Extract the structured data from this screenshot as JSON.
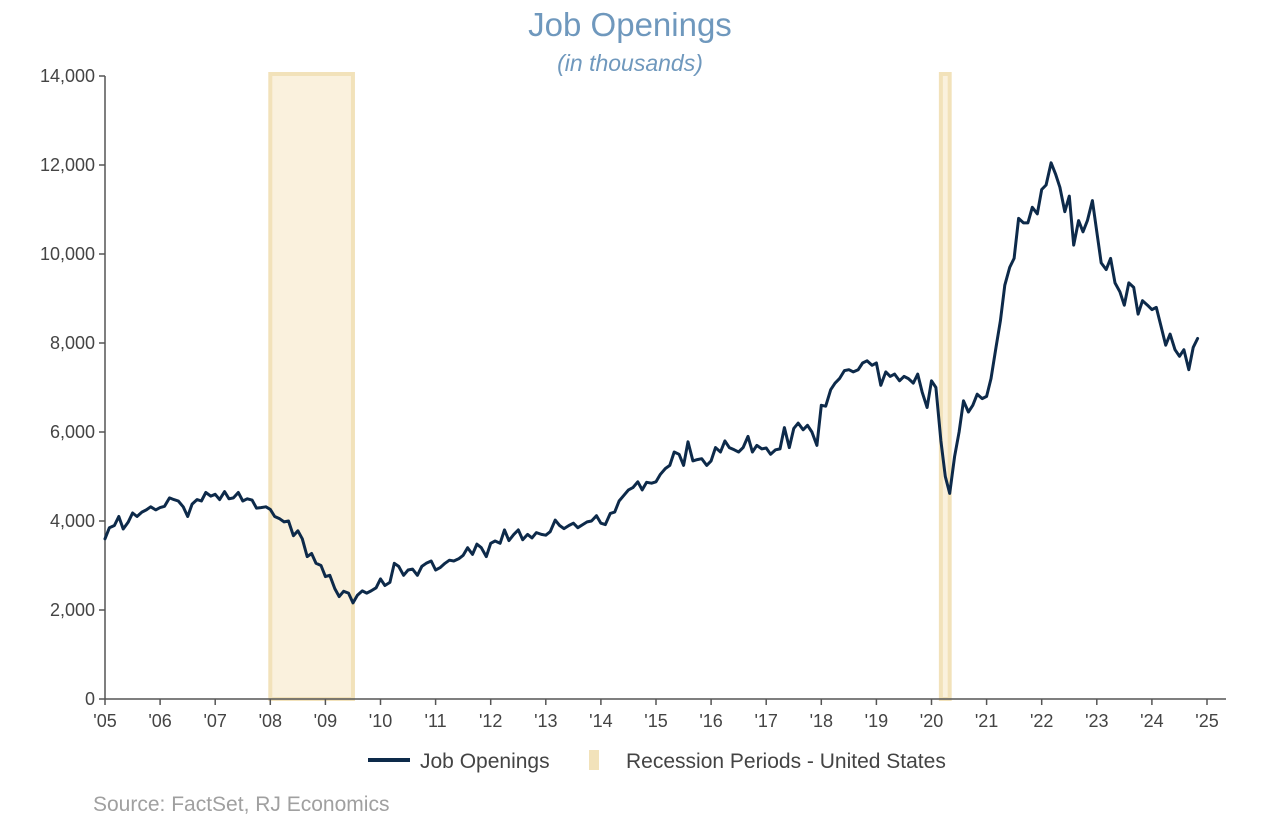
{
  "chart_data": {
    "type": "line",
    "title": "Job Openings",
    "subtitle": "(in thousands)",
    "ylim": [
      0,
      14000
    ],
    "yticks": [
      0,
      2000,
      4000,
      6000,
      8000,
      10000,
      12000,
      14000
    ],
    "ytick_labels": [
      "0",
      "2,000",
      "4,000",
      "6,000",
      "8,000",
      "10,000",
      "12,000",
      "14,000"
    ],
    "xlim": [
      2005,
      2025.5
    ],
    "xticks": [
      2005,
      2006,
      2007,
      2008,
      2009,
      2010,
      2011,
      2012,
      2013,
      2014,
      2015,
      2016,
      2017,
      2018,
      2019,
      2020,
      2021,
      2022,
      2023,
      2024,
      2025
    ],
    "xtick_labels": [
      "'05",
      "'06",
      "'07",
      "'08",
      "'09",
      "'10",
      "'11",
      "'12",
      "'13",
      "'14",
      "'15",
      "'16",
      "'17",
      "'18",
      "'19",
      "'20",
      "'21",
      "'22",
      "'23",
      "'24",
      "'25"
    ],
    "grid": false,
    "legend_position": "bottom-center",
    "colors": {
      "line": "#0d2a4a",
      "recession": "#f2e2ba",
      "recession_fill": "#faf1dd",
      "axis": "#555555"
    },
    "recessions": [
      {
        "start": 2008.0,
        "end": 2009.5
      },
      {
        "start": 2020.17,
        "end": 2020.33
      }
    ],
    "series": [
      {
        "name": "Job Openings",
        "points": [
          [
            2005.0,
            3600
          ],
          [
            2005.08,
            3850
          ],
          [
            2005.17,
            3900
          ],
          [
            2005.25,
            4100
          ],
          [
            2005.33,
            3820
          ],
          [
            2005.42,
            3970
          ],
          [
            2005.5,
            4180
          ],
          [
            2005.58,
            4100
          ],
          [
            2005.67,
            4200
          ],
          [
            2005.75,
            4250
          ],
          [
            2005.83,
            4320
          ],
          [
            2005.92,
            4250
          ],
          [
            2006.0,
            4300
          ],
          [
            2006.08,
            4330
          ],
          [
            2006.17,
            4520
          ],
          [
            2006.25,
            4480
          ],
          [
            2006.33,
            4450
          ],
          [
            2006.42,
            4320
          ],
          [
            2006.5,
            4100
          ],
          [
            2006.58,
            4380
          ],
          [
            2006.67,
            4480
          ],
          [
            2006.75,
            4450
          ],
          [
            2006.83,
            4640
          ],
          [
            2006.92,
            4560
          ],
          [
            2007.0,
            4600
          ],
          [
            2007.08,
            4480
          ],
          [
            2007.17,
            4660
          ],
          [
            2007.25,
            4500
          ],
          [
            2007.33,
            4520
          ],
          [
            2007.42,
            4640
          ],
          [
            2007.5,
            4450
          ],
          [
            2007.58,
            4500
          ],
          [
            2007.67,
            4470
          ],
          [
            2007.75,
            4290
          ],
          [
            2007.83,
            4300
          ],
          [
            2007.92,
            4320
          ],
          [
            2008.0,
            4260
          ],
          [
            2008.08,
            4100
          ],
          [
            2008.17,
            4050
          ],
          [
            2008.25,
            3980
          ],
          [
            2008.33,
            4000
          ],
          [
            2008.42,
            3670
          ],
          [
            2008.5,
            3780
          ],
          [
            2008.58,
            3600
          ],
          [
            2008.67,
            3200
          ],
          [
            2008.75,
            3270
          ],
          [
            2008.83,
            3050
          ],
          [
            2008.92,
            3000
          ],
          [
            2009.0,
            2750
          ],
          [
            2009.08,
            2780
          ],
          [
            2009.17,
            2480
          ],
          [
            2009.25,
            2300
          ],
          [
            2009.33,
            2420
          ],
          [
            2009.42,
            2380
          ],
          [
            2009.5,
            2160
          ],
          [
            2009.58,
            2330
          ],
          [
            2009.67,
            2430
          ],
          [
            2009.75,
            2380
          ],
          [
            2009.83,
            2430
          ],
          [
            2009.92,
            2500
          ],
          [
            2010.0,
            2700
          ],
          [
            2010.08,
            2550
          ],
          [
            2010.17,
            2620
          ],
          [
            2010.25,
            3050
          ],
          [
            2010.33,
            2980
          ],
          [
            2010.42,
            2780
          ],
          [
            2010.5,
            2900
          ],
          [
            2010.58,
            2920
          ],
          [
            2010.67,
            2780
          ],
          [
            2010.75,
            2980
          ],
          [
            2010.83,
            3050
          ],
          [
            2010.92,
            3100
          ],
          [
            2011.0,
            2900
          ],
          [
            2011.08,
            2950
          ],
          [
            2011.17,
            3050
          ],
          [
            2011.25,
            3120
          ],
          [
            2011.33,
            3100
          ],
          [
            2011.42,
            3150
          ],
          [
            2011.5,
            3230
          ],
          [
            2011.58,
            3400
          ],
          [
            2011.67,
            3250
          ],
          [
            2011.75,
            3480
          ],
          [
            2011.83,
            3400
          ],
          [
            2011.92,
            3200
          ],
          [
            2012.0,
            3500
          ],
          [
            2012.08,
            3550
          ],
          [
            2012.17,
            3500
          ],
          [
            2012.25,
            3800
          ],
          [
            2012.33,
            3560
          ],
          [
            2012.42,
            3700
          ],
          [
            2012.5,
            3800
          ],
          [
            2012.58,
            3580
          ],
          [
            2012.67,
            3700
          ],
          [
            2012.75,
            3620
          ],
          [
            2012.83,
            3740
          ],
          [
            2012.92,
            3700
          ],
          [
            2013.0,
            3680
          ],
          [
            2013.08,
            3760
          ],
          [
            2013.17,
            4020
          ],
          [
            2013.25,
            3900
          ],
          [
            2013.33,
            3830
          ],
          [
            2013.42,
            3900
          ],
          [
            2013.5,
            3950
          ],
          [
            2013.58,
            3850
          ],
          [
            2013.67,
            3920
          ],
          [
            2013.75,
            3980
          ],
          [
            2013.83,
            4000
          ],
          [
            2013.92,
            4120
          ],
          [
            2014.0,
            3950
          ],
          [
            2014.08,
            3920
          ],
          [
            2014.17,
            4170
          ],
          [
            2014.25,
            4200
          ],
          [
            2014.33,
            4450
          ],
          [
            2014.42,
            4580
          ],
          [
            2014.5,
            4700
          ],
          [
            2014.58,
            4750
          ],
          [
            2014.67,
            4880
          ],
          [
            2014.75,
            4700
          ],
          [
            2014.83,
            4870
          ],
          [
            2014.92,
            4850
          ],
          [
            2015.0,
            4880
          ],
          [
            2015.08,
            5050
          ],
          [
            2015.17,
            5180
          ],
          [
            2015.25,
            5250
          ],
          [
            2015.33,
            5550
          ],
          [
            2015.42,
            5500
          ],
          [
            2015.5,
            5250
          ],
          [
            2015.58,
            5780
          ],
          [
            2015.67,
            5350
          ],
          [
            2015.75,
            5380
          ],
          [
            2015.83,
            5400
          ],
          [
            2015.92,
            5250
          ],
          [
            2016.0,
            5350
          ],
          [
            2016.08,
            5650
          ],
          [
            2016.17,
            5550
          ],
          [
            2016.25,
            5800
          ],
          [
            2016.33,
            5650
          ],
          [
            2016.42,
            5600
          ],
          [
            2016.5,
            5550
          ],
          [
            2016.58,
            5650
          ],
          [
            2016.67,
            5900
          ],
          [
            2016.75,
            5550
          ],
          [
            2016.83,
            5700
          ],
          [
            2016.92,
            5620
          ],
          [
            2017.0,
            5640
          ],
          [
            2017.08,
            5500
          ],
          [
            2017.17,
            5600
          ],
          [
            2017.25,
            5620
          ],
          [
            2017.33,
            6100
          ],
          [
            2017.42,
            5650
          ],
          [
            2017.5,
            6080
          ],
          [
            2017.58,
            6200
          ],
          [
            2017.67,
            6050
          ],
          [
            2017.75,
            6150
          ],
          [
            2017.83,
            6000
          ],
          [
            2017.92,
            5700
          ],
          [
            2018.0,
            6600
          ],
          [
            2018.08,
            6580
          ],
          [
            2018.17,
            6950
          ],
          [
            2018.25,
            7100
          ],
          [
            2018.33,
            7200
          ],
          [
            2018.42,
            7380
          ],
          [
            2018.5,
            7400
          ],
          [
            2018.58,
            7350
          ],
          [
            2018.67,
            7400
          ],
          [
            2018.75,
            7550
          ],
          [
            2018.83,
            7600
          ],
          [
            2018.92,
            7500
          ],
          [
            2019.0,
            7550
          ],
          [
            2019.08,
            7050
          ],
          [
            2019.17,
            7350
          ],
          [
            2019.25,
            7250
          ],
          [
            2019.33,
            7300
          ],
          [
            2019.42,
            7150
          ],
          [
            2019.5,
            7250
          ],
          [
            2019.58,
            7200
          ],
          [
            2019.67,
            7100
          ],
          [
            2019.75,
            7300
          ],
          [
            2019.83,
            6900
          ],
          [
            2019.92,
            6550
          ],
          [
            2020.0,
            7150
          ],
          [
            2020.08,
            7000
          ],
          [
            2020.17,
            5800
          ],
          [
            2020.25,
            5000
          ],
          [
            2020.33,
            4620
          ],
          [
            2020.42,
            5450
          ],
          [
            2020.5,
            6000
          ],
          [
            2020.58,
            6700
          ],
          [
            2020.67,
            6450
          ],
          [
            2020.75,
            6600
          ],
          [
            2020.83,
            6850
          ],
          [
            2020.92,
            6750
          ],
          [
            2021.0,
            6800
          ],
          [
            2021.08,
            7200
          ],
          [
            2021.17,
            7900
          ],
          [
            2021.25,
            8500
          ],
          [
            2021.33,
            9300
          ],
          [
            2021.42,
            9700
          ],
          [
            2021.5,
            9900
          ],
          [
            2021.58,
            10800
          ],
          [
            2021.67,
            10700
          ],
          [
            2021.75,
            10700
          ],
          [
            2021.83,
            11050
          ],
          [
            2021.92,
            10900
          ],
          [
            2022.0,
            11450
          ],
          [
            2022.08,
            11550
          ],
          [
            2022.17,
            12050
          ],
          [
            2022.25,
            11800
          ],
          [
            2022.33,
            11500
          ],
          [
            2022.42,
            10950
          ],
          [
            2022.5,
            11300
          ],
          [
            2022.58,
            10200
          ],
          [
            2022.67,
            10750
          ],
          [
            2022.75,
            10500
          ],
          [
            2022.83,
            10750
          ],
          [
            2022.92,
            11200
          ],
          [
            2023.0,
            10500
          ],
          [
            2023.08,
            9800
          ],
          [
            2023.17,
            9650
          ],
          [
            2023.25,
            9900
          ],
          [
            2023.33,
            9350
          ],
          [
            2023.42,
            9150
          ],
          [
            2023.5,
            8850
          ],
          [
            2023.58,
            9350
          ],
          [
            2023.67,
            9250
          ],
          [
            2023.75,
            8650
          ],
          [
            2023.83,
            8950
          ],
          [
            2023.92,
            8850
          ],
          [
            2024.0,
            8750
          ],
          [
            2024.08,
            8800
          ],
          [
            2024.17,
            8350
          ],
          [
            2024.25,
            7950
          ],
          [
            2024.33,
            8200
          ],
          [
            2024.42,
            7850
          ],
          [
            2024.5,
            7700
          ],
          [
            2024.58,
            7850
          ],
          [
            2024.67,
            7400
          ],
          [
            2024.75,
            7900
          ],
          [
            2024.83,
            8100
          ]
        ]
      }
    ]
  },
  "legend": {
    "line_label": "Job Openings",
    "recession_label": "Recession Periods - United States"
  },
  "source": "Source: FactSet, RJ Economics"
}
